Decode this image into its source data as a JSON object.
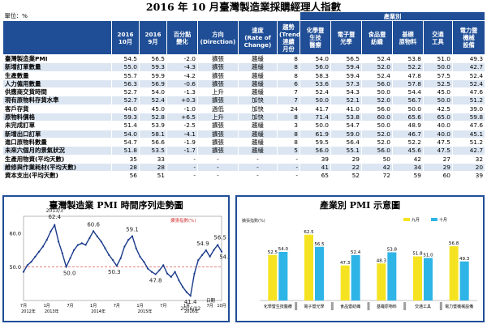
{
  "title": "2016 年 10 月臺灣製造業採購經理人指數",
  "unit": "單位：%",
  "table": {
    "group_header": "產業別",
    "headers": [
      "2016\n10月",
      "2016\n9月",
      "百分點\n變化",
      "方向\n(Direction)",
      "速度\n(Rate of\nChange)",
      "趨勢\n(Trend)\n連續\n月份",
      "化學暨\n生技\n醫療",
      "電子暨\n光學",
      "食品暨\n紡織",
      "基礎\n原物料",
      "交通\n工具",
      "電力暨\n機械\n設備"
    ],
    "rows": [
      {
        "name": "臺灣製造業PMI",
        "cells": [
          "54.5",
          "56.5",
          "-2.0",
          "擴張",
          "趨緩",
          "8",
          "54.0",
          "56.5",
          "52.4",
          "53.8",
          "51.0",
          "49.3"
        ]
      },
      {
        "name": "新增訂單數量",
        "cells": [
          "55.0",
          "59.3",
          "-4.3",
          "擴張",
          "趨緩",
          "8",
          "56.0",
          "59.4",
          "52.0",
          "52.2",
          "50.0",
          "42.7"
        ]
      },
      {
        "name": "生產數量",
        "cells": [
          "55.7",
          "59.9",
          "-4.2",
          "擴張",
          "趨緩",
          "8",
          "58.3",
          "59.4",
          "52.4",
          "47.8",
          "57.5",
          "52.4"
        ]
      },
      {
        "name": "人力僱用數量",
        "cells": [
          "56.3",
          "56.9",
          "-0.6",
          "擴張",
          "趨緩",
          "6",
          "53.6",
          "57.3",
          "56.0",
          "57.8",
          "52.5",
          "52.4"
        ]
      },
      {
        "name": "供應商交貨時間",
        "cells": [
          "52.7",
          "54.0",
          "-1.3",
          "上升",
          "趨緩",
          "7",
          "52.4",
          "54.3",
          "50.0",
          "54.4",
          "45.0",
          "47.6"
        ]
      },
      {
        "name": "現有原物料存貨水準",
        "cells": [
          "52.7",
          "52.4",
          "+0.3",
          "擴張",
          "加快",
          "7",
          "50.0",
          "52.1",
          "52.0",
          "56.7",
          "50.0",
          "51.2"
        ]
      },
      {
        "name": "客戶存貨",
        "cells": [
          "44.0",
          "45.0",
          "-1.0",
          "過低",
          "加快",
          "24",
          "41.7",
          "41.0",
          "56.0",
          "50.0",
          "42.5",
          "39.0"
        ]
      },
      {
        "name": "原物料價格",
        "cells": [
          "59.3",
          "52.8",
          "+6.5",
          "上升",
          "加快",
          "8",
          "71.4",
          "53.8",
          "60.0",
          "65.6",
          "65.0",
          "59.8"
        ]
      },
      {
        "name": "未完成訂單",
        "cells": [
          "51.4",
          "53.9",
          "-2.5",
          "擴張",
          "趨緩",
          "3",
          "50.0",
          "54.7",
          "50.0",
          "48.9",
          "40.0",
          "47.6"
        ]
      },
      {
        "name": "新增出口訂單",
        "cells": [
          "54.0",
          "58.1",
          "-4.1",
          "擴張",
          "趨緩",
          "8",
          "61.9",
          "59.0",
          "52.0",
          "46.7",
          "40.0",
          "45.1"
        ]
      },
      {
        "name": "進口原物料數量",
        "cells": [
          "54.7",
          "56.6",
          "-1.9",
          "擴張",
          "趨緩",
          "8",
          "59.5",
          "56.4",
          "52.0",
          "52.2",
          "47.5",
          "51.2"
        ]
      },
      {
        "name": "未來六個月的景氣狀況",
        "cells": [
          "51.8",
          "53.5",
          "-1.7",
          "擴張",
          "趨緩",
          "5",
          "56.0",
          "55.1",
          "56.0",
          "45.6",
          "47.5",
          "42.7"
        ]
      },
      {
        "name": "生產用物資(平均天數)",
        "cells": [
          "35",
          "33",
          "-",
          "-",
          "-",
          "-",
          "39",
          "29",
          "50",
          "42",
          "27",
          "32"
        ]
      },
      {
        "name": "維修與作業耗材(平均天數)",
        "cells": [
          "28",
          "28",
          "-",
          "-",
          "-",
          "-",
          "41",
          "22",
          "42",
          "34",
          "29",
          "20"
        ]
      },
      {
        "name": "資本支出(平均天數)",
        "cells": [
          "56",
          "51",
          "-",
          "-",
          "-",
          "-",
          "65",
          "52",
          "72",
          "59",
          "60",
          "39"
        ]
      }
    ]
  },
  "trend_chart": {
    "title": "臺灣製造業 PMI 時間序列走勢圖",
    "legend": "擴張指數(%)",
    "y_ticks": [
      "60.0",
      "50.0"
    ],
    "x_ticks": [
      "7月",
      "1月",
      "7月",
      "1月",
      "7月",
      "1月",
      "7月",
      "1月",
      "7月",
      "1月",
      "10月"
    ],
    "year_labels": [
      "2012年",
      "2013年",
      "2014年",
      "2015年",
      "2016年"
    ],
    "axis_suffix": "日期",
    "annotations": [
      {
        "date": "2013/3",
        "value": "62.4"
      },
      {
        "date": "",
        "value": "50.0"
      },
      {
        "date": "",
        "value": "60.6"
      },
      {
        "date": "",
        "value": "50.3"
      },
      {
        "date": "",
        "value": "59.1"
      },
      {
        "date": "",
        "value": "47.8"
      },
      {
        "date": "2016/02",
        "value": "41.4"
      },
      {
        "date": "",
        "value": "54.9"
      },
      {
        "date": "",
        "value": "56.5"
      },
      {
        "date": "",
        "value": "54.5"
      }
    ]
  },
  "chart_data": [
    {
      "type": "line",
      "title": "臺灣製造業 PMI 時間序列走勢圖",
      "ylim": [
        40,
        65
      ],
      "series": [
        {
          "name": "擴張指數(%)",
          "x": [
            "2012/07",
            "2012/08",
            "2012/09",
            "2012/10",
            "2012/11",
            "2012/12",
            "2013/01",
            "2013/02",
            "2013/03",
            "2013/04",
            "2013/05",
            "2013/06",
            "2013/07",
            "2013/08",
            "2013/09",
            "2013/10",
            "2013/11",
            "2013/12",
            "2014/01",
            "2014/02",
            "2014/03",
            "2014/04",
            "2014/05",
            "2014/06",
            "2014/07",
            "2014/08",
            "2014/09",
            "2014/10",
            "2014/11",
            "2014/12",
            "2015/01",
            "2015/02",
            "2015/03",
            "2015/04",
            "2015/05",
            "2015/06",
            "2015/07",
            "2015/08",
            "2015/09",
            "2015/10",
            "2015/11",
            "2015/12",
            "2016/01",
            "2016/02",
            "2016/03",
            "2016/04",
            "2016/05",
            "2016/06",
            "2016/07",
            "2016/08",
            "2016/09",
            "2016/10"
          ],
          "values": [
            48.5,
            50.5,
            51.5,
            53.0,
            54.5,
            56.0,
            58.0,
            60.5,
            62.4,
            57.5,
            54.0,
            50.0,
            52.5,
            55.0,
            56.5,
            57.0,
            56.5,
            58.5,
            60.6,
            59.0,
            57.5,
            55.5,
            53.5,
            52.0,
            50.3,
            52.5,
            56.0,
            58.0,
            59.1,
            55.5,
            53.0,
            51.5,
            49.5,
            48.5,
            47.8,
            49.0,
            50.5,
            48.0,
            47.0,
            48.5,
            46.0,
            44.0,
            42.5,
            41.4,
            48.0,
            52.0,
            53.5,
            54.9,
            53.0,
            55.0,
            56.5,
            54.5
          ]
        }
      ]
    },
    {
      "type": "bar",
      "title": "產業別 PMI 示意圖",
      "ylabel": "擴張指數(%)",
      "categories": [
        "化學暨生技醫療",
        "電子暨光學",
        "食品暨紡織",
        "基礎原物料",
        "交通工具",
        "電力暨機械設備"
      ],
      "series": [
        {
          "name": "九月",
          "values": [
            52.5,
            62.5,
            47.3,
            48.3,
            51.8,
            56.8
          ],
          "color": "#f5e321"
        },
        {
          "name": "十月",
          "values": [
            54.0,
            56.5,
            52.4,
            53.8,
            51.0,
            49.3
          ],
          "color": "#2eb4e6"
        }
      ],
      "ylim": [
        30,
        70
      ]
    }
  ],
  "colors": {
    "header_blue": "#1f4e96",
    "row_alt": "#dce6f2",
    "line": "#1a3a8a",
    "sep_bar": "#9e9e9e"
  }
}
